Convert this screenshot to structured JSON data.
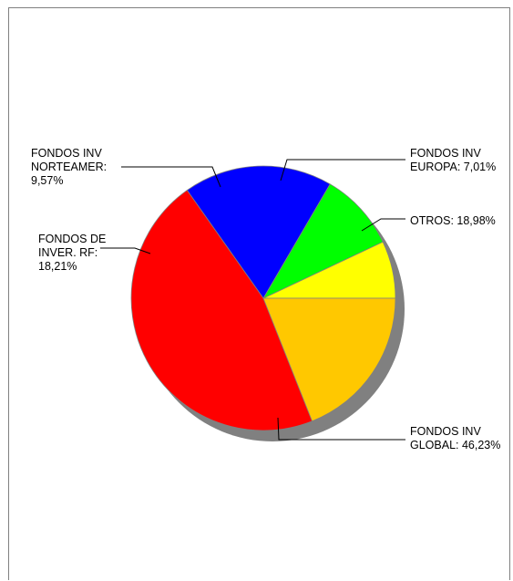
{
  "chart_data": {
    "type": "pie",
    "slices": [
      {
        "label": "FONDOS INV\nEUROPA: 7,01%",
        "value": 7.01,
        "color": "#ffff00"
      },
      {
        "label": "FONDOS INV\nNORTEAMER:\n9,57%",
        "value": 9.57,
        "color": "#00ff00"
      },
      {
        "label": "FONDOS DE\nINVER. RF:\n18,21%",
        "value": 18.21,
        "color": "#0000ff"
      },
      {
        "label": "FONDOS INV\nGLOBAL: 46,23%",
        "value": 46.23,
        "color": "#ff0000"
      },
      {
        "label": "OTROS: 18,98%",
        "value": 18.98,
        "color": "#ffc800"
      }
    ],
    "start_angle_deg": 0,
    "direction": "counterclockwise",
    "shadow_color": "#808080",
    "legend": "none"
  }
}
